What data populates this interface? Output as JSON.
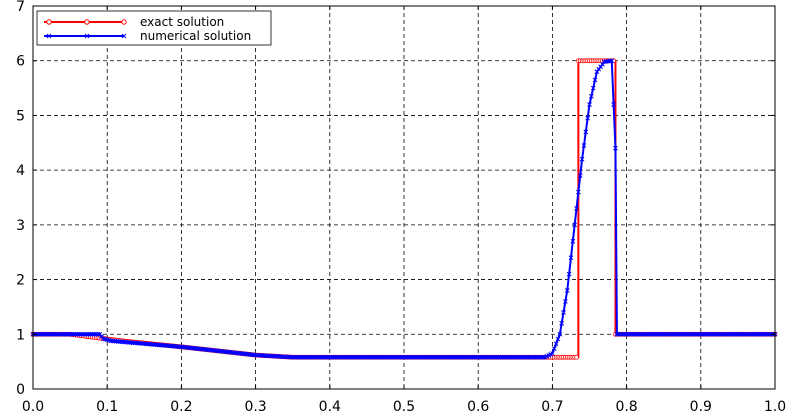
{
  "chart_data": {
    "type": "line",
    "xlim": [
      0.0,
      1.0
    ],
    "ylim": [
      0,
      7
    ],
    "xticks": [
      "0.0",
      "0.1",
      "0.2",
      "0.3",
      "0.4",
      "0.5",
      "0.6",
      "0.7",
      "0.8",
      "0.9",
      "1.0"
    ],
    "yticks": [
      "0",
      "1",
      "2",
      "3",
      "4",
      "5",
      "6",
      "7"
    ],
    "grid": true,
    "legend_position": "top-left",
    "series": [
      {
        "name": "exact solution",
        "color": "#ff0000",
        "marker": "circle",
        "x": [
          0.0,
          0.05,
          0.09,
          0.12,
          0.2,
          0.3,
          0.35,
          0.5,
          0.735,
          0.735,
          0.775,
          0.785,
          0.785,
          1.0
        ],
        "y": [
          1.0,
          1.0,
          0.93,
          0.88,
          0.77,
          0.62,
          0.58,
          0.58,
          0.58,
          6.0,
          6.0,
          6.0,
          1.0,
          1.0
        ]
      },
      {
        "name": "numerical solution",
        "color": "#0000ff",
        "marker": "x",
        "x": [
          0.0,
          0.09,
          0.095,
          0.105,
          0.2,
          0.3,
          0.35,
          0.5,
          0.69,
          0.7,
          0.71,
          0.72,
          0.73,
          0.74,
          0.75,
          0.76,
          0.77,
          0.78,
          0.785,
          0.787,
          1.0
        ],
        "y": [
          1.0,
          1.0,
          0.92,
          0.88,
          0.77,
          0.62,
          0.58,
          0.58,
          0.58,
          0.65,
          1.0,
          1.8,
          3.0,
          4.2,
          5.2,
          5.8,
          5.98,
          6.0,
          4.4,
          1.0,
          1.0
        ]
      }
    ]
  }
}
